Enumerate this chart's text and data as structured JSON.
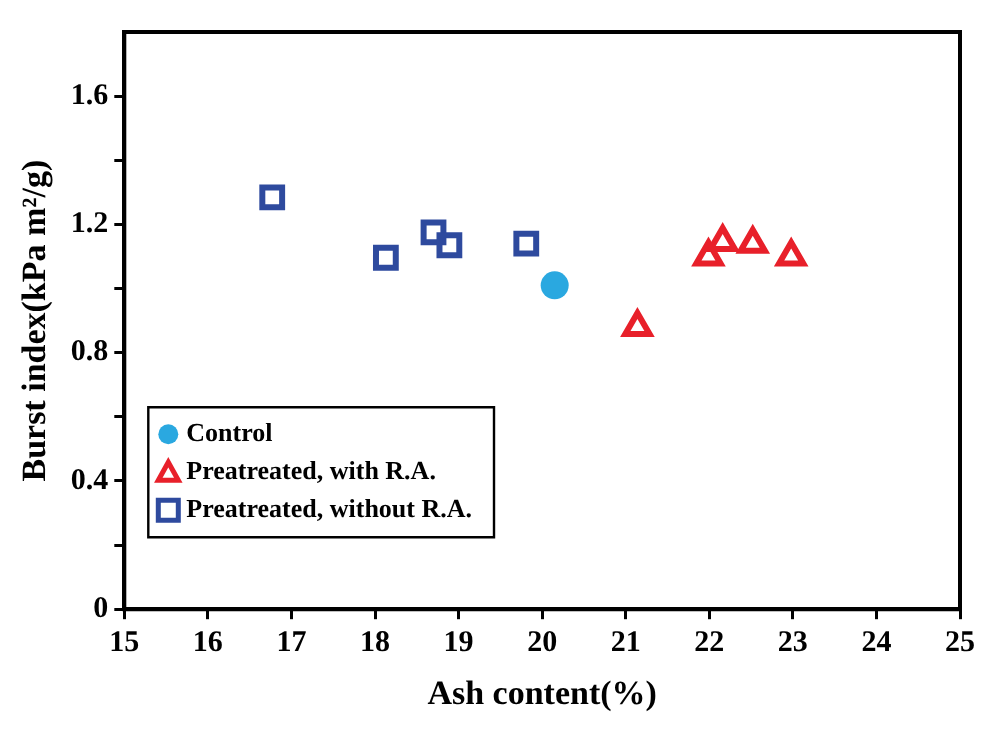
{
  "chart_data": {
    "type": "scatter",
    "xlabel": "Ash content(%)",
    "ylabel": "Burst index(kPa m²/g)",
    "xlim": [
      15,
      25
    ],
    "xticks": [
      15,
      16,
      17,
      18,
      19,
      20,
      21,
      22,
      23,
      24,
      25
    ],
    "ylim": [
      0,
      1.8
    ],
    "yticks": [
      0,
      {
        "value": 0.2,
        "label": null
      },
      0.4,
      {
        "value": 0.6,
        "label": null
      },
      0.8,
      {
        "value": 1.0,
        "label": null
      },
      1.2,
      {
        "value": 1.4,
        "label": null
      },
      1.6
    ],
    "grid": false,
    "legend": "bottom left",
    "series": [
      {
        "name": "Control",
        "color": "#2aa8e0",
        "marker": "circle",
        "x": [
          20.15
        ],
        "values": [
          1.01
        ]
      },
      {
        "name": "Preatreated, with R.A.",
        "color": "#e8202a",
        "marker": "triangle",
        "x": [
          21.14,
          21.99,
          22.16,
          22.52,
          22.98
        ],
        "values": [
          0.88,
          1.1,
          1.145,
          1.14,
          1.1
        ]
      },
      {
        "name": "Preatreated, without R.A.",
        "color": "#2e4a9e",
        "marker": "square",
        "x": [
          16.77,
          18.13,
          18.7,
          18.89,
          19.81
        ],
        "values": [
          1.284,
          1.096,
          1.175,
          1.135,
          1.14
        ]
      }
    ]
  }
}
